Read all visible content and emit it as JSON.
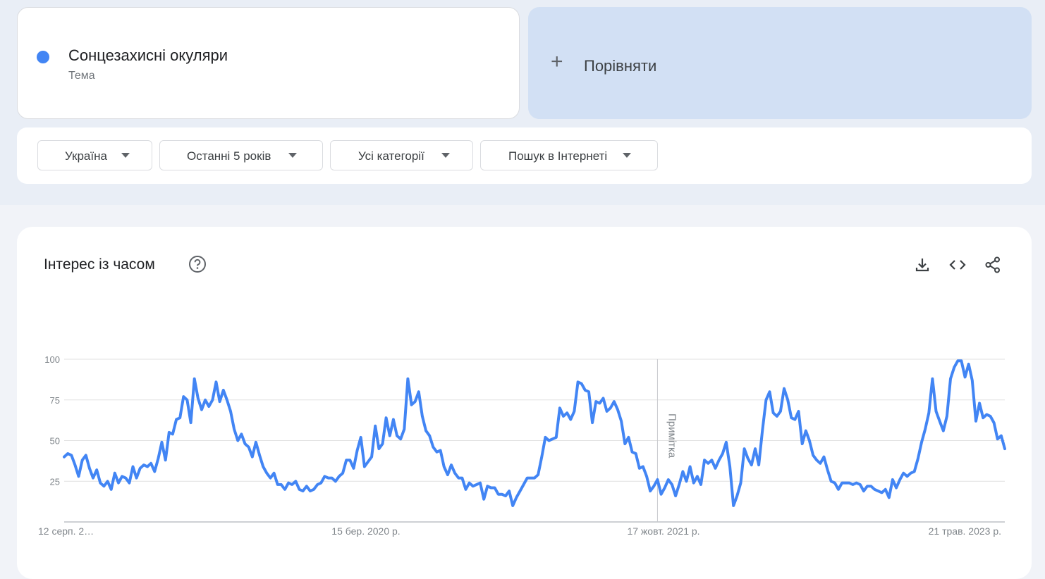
{
  "search_term": {
    "name": "Сонцезахисні окуляри",
    "type": "Тема",
    "color": "#4285f4"
  },
  "compare": {
    "icon": "plus-icon",
    "label": "Порівняти"
  },
  "filters": [
    {
      "label": "Україна"
    },
    {
      "label": "Останні 5 років"
    },
    {
      "label": "Усі категорії"
    },
    {
      "label": "Пошук в Інтернеті"
    }
  ],
  "chart_section": {
    "title": "Інтерес із часом",
    "icons": [
      "help-icon",
      "download-icon",
      "embed-code-icon",
      "share-icon"
    ]
  },
  "chart_data": {
    "type": "line",
    "title": "",
    "xlabel": "",
    "ylabel": "",
    "ylim": [
      0,
      100
    ],
    "yticks": [
      25,
      50,
      75,
      100
    ],
    "grid": true,
    "xtick_labels": [
      "12 серп. 2…",
      "15 бер. 2020 р.",
      "17 жовт. 2021 р.",
      "21 трав. 2023 р."
    ],
    "note_label": "Примітка",
    "note_x_index": 164,
    "series": [
      {
        "color": "#4285f4",
        "values": [
          40,
          42,
          41,
          35,
          28,
          38,
          41,
          33,
          27,
          32,
          24,
          22,
          25,
          20,
          30,
          24,
          28,
          27,
          24,
          34,
          27,
          33,
          35,
          34,
          36,
          31,
          39,
          49,
          38,
          55,
          54,
          63,
          64,
          77,
          75,
          61,
          88,
          76,
          69,
          75,
          71,
          75,
          86,
          74,
          81,
          75,
          68,
          57,
          50,
          54,
          48,
          46,
          40,
          49,
          41,
          34,
          30,
          27,
          30,
          23,
          23,
          20,
          24,
          23,
          25,
          20,
          19,
          22,
          19,
          20,
          23,
          24,
          28,
          27,
          27,
          25,
          28,
          30,
          38,
          38,
          33,
          44,
          52,
          34,
          37,
          40,
          59,
          45,
          48,
          64,
          53,
          63,
          53,
          51,
          57,
          88,
          72,
          74,
          80,
          65,
          56,
          53,
          46,
          43,
          44,
          34,
          29,
          35,
          30,
          27,
          27,
          20,
          24,
          22,
          23,
          24,
          14,
          22,
          21,
          21,
          17,
          17,
          16,
          19,
          10,
          15,
          19,
          23,
          27,
          27,
          27,
          29,
          40,
          52,
          50,
          51,
          52,
          70,
          65,
          67,
          63,
          68,
          86,
          85,
          81,
          80,
          61,
          74,
          73,
          76,
          68,
          70,
          74,
          69,
          62,
          48,
          52,
          43,
          42,
          33,
          34,
          28,
          19,
          22,
          26,
          17,
          21,
          26,
          23,
          16,
          23,
          31,
          25,
          34,
          24,
          28,
          23,
          38,
          36,
          38,
          33,
          38,
          42,
          49,
          34,
          10,
          16,
          24,
          45,
          39,
          35,
          45,
          35,
          56,
          75,
          80,
          67,
          65,
          68,
          82,
          75,
          64,
          63,
          68,
          48,
          56,
          50,
          41,
          38,
          36,
          40,
          32,
          25,
          24,
          20,
          24,
          24,
          24,
          23,
          24,
          23,
          19,
          22,
          22,
          20,
          19,
          18,
          20,
          15,
          26,
          21,
          26,
          30,
          28,
          30,
          31,
          39,
          49,
          57,
          67,
          88,
          68,
          62,
          56,
          65,
          88,
          95,
          99,
          99,
          89,
          97,
          87,
          62,
          73,
          64,
          66,
          65,
          61,
          51,
          53,
          45
        ]
      }
    ]
  }
}
